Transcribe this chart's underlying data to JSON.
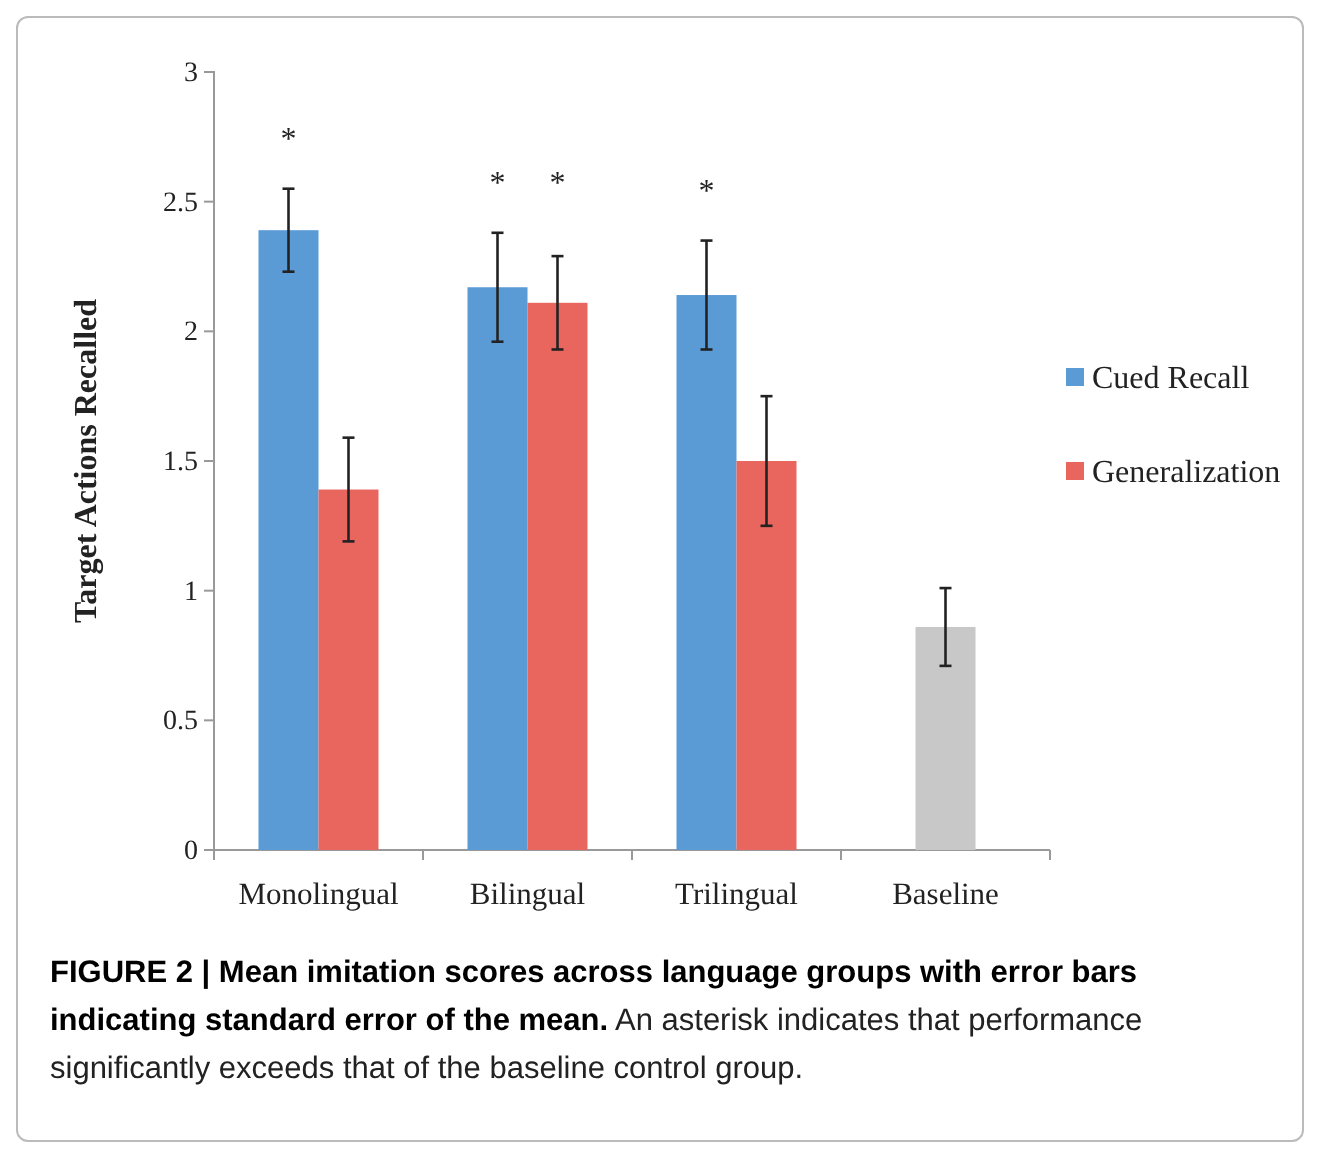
{
  "chart_data": {
    "type": "bar",
    "title": "FIGURE 2 | Mean imitation scores across language groups with error bars indicating standard error of the mean.",
    "ylabel": "Target Actions Recalled",
    "categories": [
      "Monolingual",
      "Bilingual",
      "Trilingual",
      "Baseline"
    ],
    "series": [
      {
        "name": "Cued Recall",
        "color": "#5b9bd5",
        "values": [
          2.39,
          2.17,
          2.14,
          null
        ],
        "errors": [
          0.16,
          0.21,
          0.21,
          null
        ],
        "value_labels": [
          "*",
          "*",
          "*",
          null
        ]
      },
      {
        "name": "Generalization",
        "color": "#e8665e",
        "values": [
          1.39,
          2.11,
          1.5,
          null
        ],
        "errors": [
          0.2,
          0.18,
          0.25,
          null
        ],
        "value_labels": [
          null,
          "*",
          null,
          null
        ]
      },
      {
        "color": "#c8c8c8",
        "values": [
          null,
          null,
          null,
          0.86
        ],
        "errors": [
          null,
          null,
          null,
          0.15
        ]
      }
    ],
    "ylim": [
      0,
      3
    ],
    "yticks": [
      0,
      0.5,
      1,
      1.5,
      2,
      2.5,
      3
    ],
    "grid": false,
    "legend": "right",
    "annotations": [
      "An asterisk indicates that performance significantly exceeds that of the baseline control group."
    ]
  }
}
